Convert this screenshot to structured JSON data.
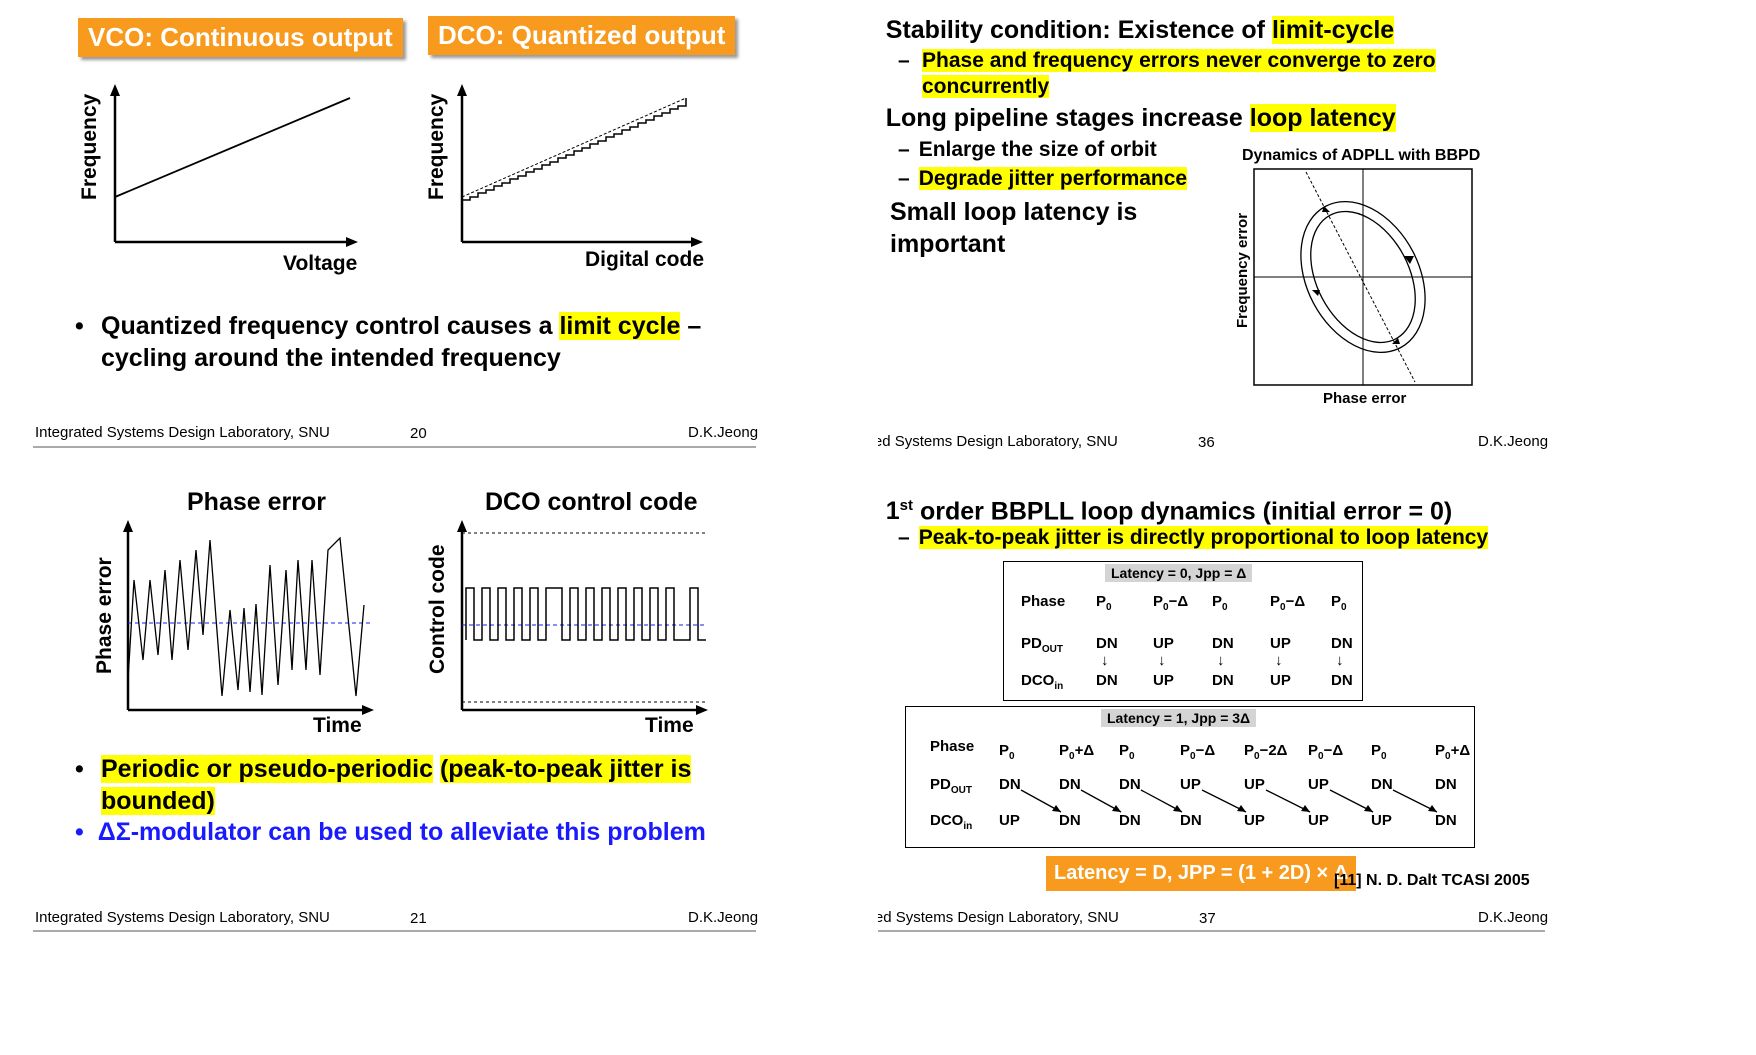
{
  "footer": {
    "lab": "Integrated Systems Design Laboratory, SNU",
    "author": "D.K.Jeong"
  },
  "slide20": {
    "page": "20",
    "vco_label": "VCO: Continuous output",
    "dco_label": "DCO: Quantized output",
    "vco_ylabel": "Frequency",
    "vco_xlabel": "Voltage",
    "dco_ylabel": "Frequency",
    "dco_xlabel": "Digital code",
    "bullet_pre": "Quantized frequency control causes a ",
    "bullet_hl": "limit cycle",
    "bullet_post": " –",
    "bullet_line2": "cycling around the intended frequency"
  },
  "slide21": {
    "page": "21",
    "phase_title": "Phase error",
    "dco_title": "DCO control code",
    "phase_ylabel": "Phase error",
    "phase_xlabel": "Time",
    "dco_ylabel": "Control code",
    "dco_xlabel": "Time",
    "bullet1_hl1": "Periodic or pseudo-periodic",
    "bullet1_hl2": "(peak-to-peak jitter is",
    "bullet1_hl3": "bounded)",
    "bullet2": "ΔΣ-modulator can be used to alleviate this problem",
    "bullet2_color": "#1a1aff"
  },
  "slide36": {
    "page": "36",
    "b1_pre": "Stability condition: Existence of ",
    "b1_hl": "limit-cycle",
    "s1_line1": "Phase and frequency errors never converge to zero",
    "s1_line2": "concurrently",
    "b2_pre": "Long pipeline stages increase ",
    "b2_hl": "loop latency",
    "s2": "Enlarge the size of orbit",
    "s3": "Degrade jitter performance",
    "b3_line1": "Small loop latency is",
    "b3_line2": "important",
    "fig_title": "Dynamics of ADPLL with BBPD",
    "fig_ylabel": "Frequency error",
    "fig_xlabel": "Phase error"
  },
  "slide37": {
    "page": "37",
    "b1_pre": "1",
    "b1_sup": "st",
    "b1_post": " order BBPLL loop dynamics (initial error = 0)",
    "s1": "Peak-to-peak jitter is directly proportional to loop latency",
    "t1_title": "Latency = 0, Jpp = Δ",
    "t1_rows": {
      "labels": [
        "Phase",
        "PDOUT",
        "DCOin"
      ],
      "phase": [
        "P0",
        "P0−Δ",
        "P0",
        "P0−Δ",
        "P0"
      ],
      "pd": [
        "DN",
        "UP",
        "DN",
        "UP",
        "DN"
      ],
      "dco": [
        "DN",
        "UP",
        "DN",
        "UP",
        "DN"
      ]
    },
    "t2_title": "Latency = 1, Jpp = 3Δ",
    "t2_rows": {
      "phase": [
        "P0",
        "P0+Δ",
        "P0",
        "P0−Δ",
        "P0−2Δ",
        "P0−Δ",
        "P0",
        "P0+Δ"
      ],
      "pd": [
        "DN",
        "DN",
        "DN",
        "UP",
        "UP",
        "UP",
        "DN",
        "DN"
      ],
      "dco": [
        "UP",
        "DN",
        "DN",
        "DN",
        "UP",
        "UP",
        "UP",
        "DN"
      ]
    },
    "formula": "Latency = D, JPP = (1 + 2D) × Δ",
    "reference": "[11] N. D. Dalt TCASI 2005"
  }
}
